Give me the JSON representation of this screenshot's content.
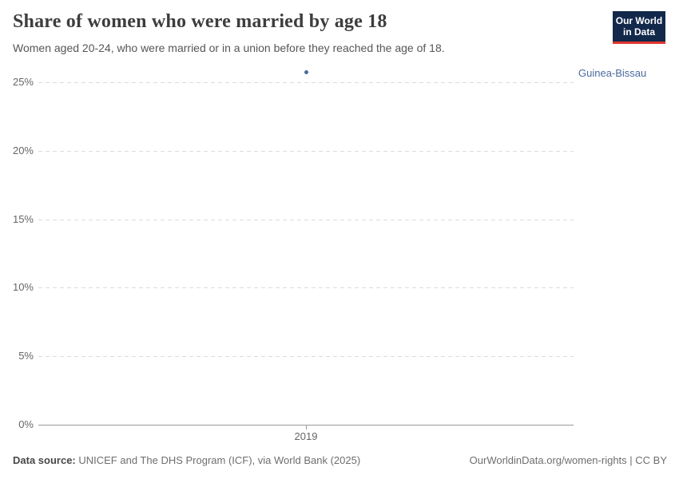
{
  "header": {
    "title": "Share of women who were married by age 18",
    "subtitle": "Women aged 20-24, who were married or in a union before they reached the age of 18.",
    "logo": {
      "line1": "Our World",
      "line2": "in Data",
      "bg_color": "#12294b",
      "stripe_color": "#e0372f"
    }
  },
  "chart_data": {
    "type": "scatter",
    "title": "Share of women who were married by age 18",
    "xlabel": "",
    "ylabel": "",
    "x_ticks": [
      "2019"
    ],
    "y_ticks": [
      0,
      5,
      10,
      15,
      20,
      25
    ],
    "y_tick_suffix": "%",
    "ylim": [
      0,
      26.5
    ],
    "grid": "horizontal-dashed",
    "legend_position": "right-of-plot",
    "series": [
      {
        "name": "Guinea-Bissau",
        "color": "#4c6a9c",
        "points": [
          {
            "x": 2019,
            "y": 25.7
          }
        ]
      }
    ]
  },
  "footer": {
    "datasource_label": "Data source:",
    "datasource_text": " UNICEF and The DHS Program (ICF), via World Bank (2025)",
    "url": "OurWorldinData.org/women-rights",
    "separator": " | ",
    "license": "CC BY"
  }
}
